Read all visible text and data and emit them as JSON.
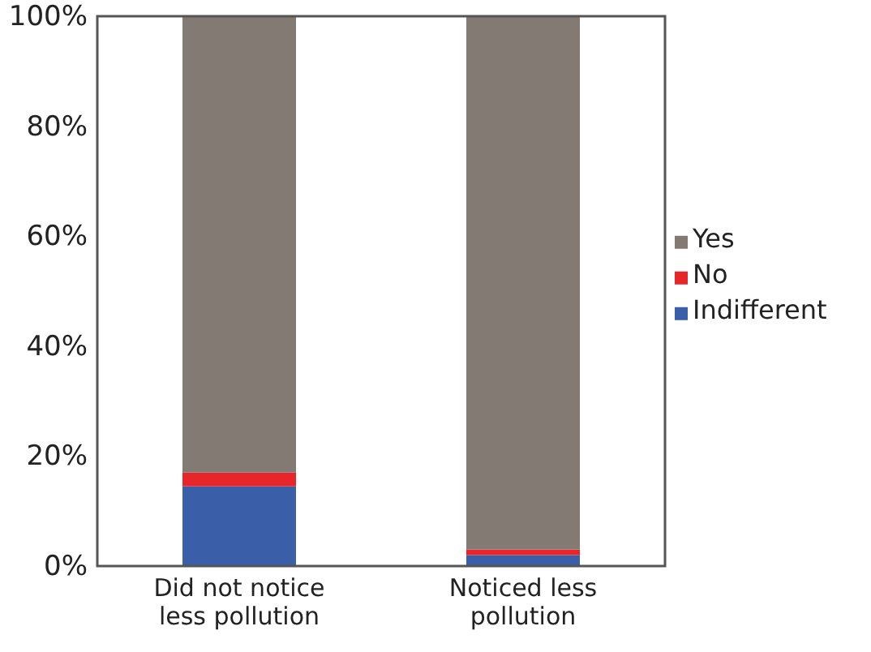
{
  "chart_data": {
    "type": "bar",
    "stacked": true,
    "categories": [
      "Did not notice less pollution",
      "Noticed less pollution"
    ],
    "series": [
      {
        "name": "Indifferent",
        "color": "#3a5fa8",
        "values": [
          14.5,
          2
        ]
      },
      {
        "name": "No",
        "color": "#e8262a",
        "values": [
          2.5,
          1
        ]
      },
      {
        "name": "Yes",
        "color": "#827a73",
        "values": [
          83,
          97
        ]
      }
    ],
    "ylim": [
      0,
      100
    ],
    "yticks": [
      {
        "value": 0,
        "label": "0%"
      },
      {
        "value": 20,
        "label": "20%"
      },
      {
        "value": 40,
        "label": "40%"
      },
      {
        "value": 60,
        "label": "60%"
      },
      {
        "value": 80,
        "label": "80%"
      },
      {
        "value": 100,
        "label": "100%"
      }
    ],
    "grid": false,
    "legend": "right"
  }
}
